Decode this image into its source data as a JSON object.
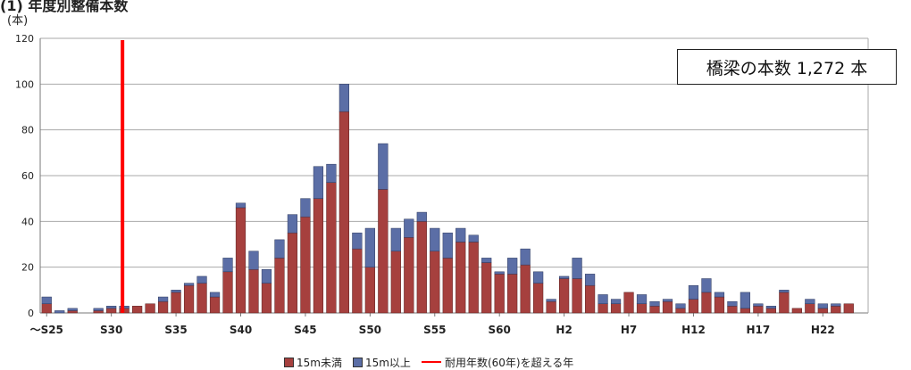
{
  "heading": "(1) 年度別整備本数",
  "callout": "橋梁の本数 1,272 本",
  "colors": {
    "under15": "#a6403e",
    "over15": "#5b6ea6",
    "limit": "#ff0000",
    "grid": "#a9a9a9"
  },
  "chart_data": {
    "type": "bar",
    "stacked": true,
    "title": "",
    "ylabel": "(本)",
    "xlabel": "",
    "ylim": [
      0,
      120
    ],
    "yticks": [
      0,
      20,
      40,
      60,
      80,
      100,
      120
    ],
    "grid": true,
    "legend_position": "bottom",
    "categories": [
      "~S25",
      "S26",
      "S27",
      "S28",
      "S29",
      "S30",
      "S31",
      "S32",
      "S33",
      "S34",
      "S35",
      "S36",
      "S37",
      "S38",
      "S39",
      "S40",
      "S41",
      "S42",
      "S43",
      "S44",
      "S45",
      "S46",
      "S47",
      "S48",
      "S49",
      "S50",
      "S51",
      "S52",
      "S53",
      "S54",
      "S55",
      "S56",
      "S57",
      "S58",
      "S59",
      "S60",
      "S61",
      "S62",
      "S63",
      "H1",
      "H2",
      "H3",
      "H4",
      "H5",
      "H6",
      "H7",
      "H8",
      "H9",
      "H10",
      "H11",
      "H12",
      "H13",
      "H14",
      "H15",
      "H16",
      "H17",
      "H18",
      "H19",
      "H20",
      "H21",
      "H22",
      "H23",
      "H24",
      "H25"
    ],
    "tick_labels": [
      {
        "index": 0,
        "label": "～S25"
      },
      {
        "index": 5,
        "label": "S30"
      },
      {
        "index": 10,
        "label": "S35"
      },
      {
        "index": 15,
        "label": "S40"
      },
      {
        "index": 20,
        "label": "S45"
      },
      {
        "index": 25,
        "label": "S50"
      },
      {
        "index": 30,
        "label": "S55"
      },
      {
        "index": 35,
        "label": "S60"
      },
      {
        "index": 40,
        "label": "H2"
      },
      {
        "index": 45,
        "label": "H7"
      },
      {
        "index": 50,
        "label": "H12"
      },
      {
        "index": 55,
        "label": "H17"
      },
      {
        "index": 60,
        "label": "H22"
      }
    ],
    "series": [
      {
        "name": "15m未満",
        "values": [
          4,
          0,
          1,
          0,
          1,
          2,
          2,
          3,
          4,
          5,
          9,
          12,
          13,
          7,
          18,
          46,
          19,
          13,
          24,
          35,
          42,
          50,
          57,
          88,
          28,
          20,
          54,
          27,
          33,
          40,
          27,
          24,
          31,
          31,
          22,
          17,
          17,
          21,
          13,
          5,
          15,
          15,
          12,
          4,
          4,
          9,
          4,
          3,
          5,
          2,
          6,
          9,
          7,
          3,
          2,
          3,
          2,
          9,
          2,
          4,
          2,
          3,
          4,
          0
        ]
      },
      {
        "name": "15m以上",
        "values": [
          3,
          1,
          1,
          0,
          1,
          1,
          1,
          0,
          0,
          2,
          1,
          1,
          3,
          2,
          6,
          2,
          8,
          6,
          8,
          8,
          8,
          14,
          8,
          12,
          7,
          17,
          20,
          10,
          8,
          4,
          10,
          11,
          6,
          3,
          2,
          1,
          7,
          7,
          5,
          1,
          1,
          9,
          5,
          4,
          2,
          0,
          4,
          2,
          1,
          2,
          6,
          6,
          2,
          2,
          7,
          1,
          1,
          1,
          0,
          2,
          2,
          1,
          0,
          0
        ]
      }
    ],
    "reference_line": {
      "name": "耐用年数(60年)を超える年",
      "category_index": 6,
      "orientation": "vertical"
    }
  }
}
